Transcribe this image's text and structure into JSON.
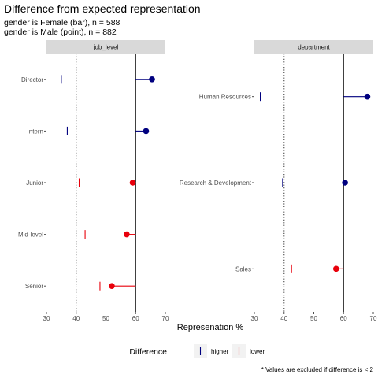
{
  "chart_data": {
    "type": "dot-bar-comparison",
    "title": "Difference from expected representation",
    "subtitle_lines": [
      "gender is Female (bar), n = 588",
      "gender is Male (point), n = 882"
    ],
    "xlabel": "Represenation %",
    "xlim": [
      30,
      70
    ],
    "xticks": [
      30,
      40,
      50,
      60,
      70
    ],
    "reference_line": 40,
    "colors": {
      "higher": "#00007f",
      "lower": "#e8000b",
      "strip": "#d9d9d9",
      "tick": "#4d4d4d"
    },
    "facets": [
      {
        "label": "job_level",
        "rows": [
          {
            "category": "Director",
            "bar": 35,
            "point": 65.5,
            "mean": 60,
            "difference": "higher"
          },
          {
            "category": "Intern",
            "bar": 37,
            "point": 63.5,
            "mean": 60,
            "difference": "higher"
          },
          {
            "category": "Junior",
            "bar": 41,
            "point": 59,
            "mean": 60,
            "difference": "lower"
          },
          {
            "category": "Mid-level",
            "bar": 43,
            "point": 57,
            "mean": 60,
            "difference": "lower"
          },
          {
            "category": "Senior",
            "bar": 48,
            "point": 52,
            "mean": 60,
            "difference": "lower"
          }
        ]
      },
      {
        "label": "department",
        "rows": [
          {
            "category": "Human Resources",
            "bar": 32,
            "point": 68,
            "mean": 60,
            "difference": "higher"
          },
          {
            "category": "Research & Development",
            "bar": 39.5,
            "point": 60.5,
            "mean": 60,
            "difference": "higher"
          },
          {
            "category": "Sales",
            "bar": 42.5,
            "point": 57.5,
            "mean": 60,
            "difference": "lower"
          }
        ]
      }
    ],
    "legend": {
      "title": "Difference",
      "placement": "bottom",
      "items": [
        {
          "label": "higher",
          "key": "higher"
        },
        {
          "label": "lower",
          "key": "lower"
        }
      ]
    },
    "caption": "* Values are excluded if difference is < 2"
  }
}
